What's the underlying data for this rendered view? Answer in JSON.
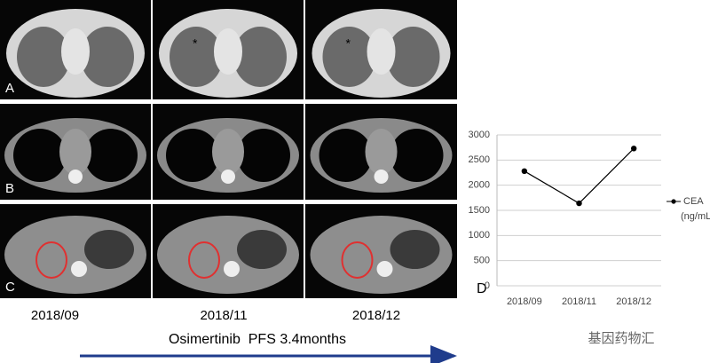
{
  "panel_labels": [
    "A",
    "B",
    "C"
  ],
  "dates": [
    "2018/09",
    "2018/11",
    "2018/12"
  ],
  "treatment": "Osimertinib  PFS 3.4months",
  "watermark": "基因药物汇",
  "chart_data": {
    "type": "line",
    "label": "D",
    "categories": [
      "2018/09",
      "2018/11",
      "2018/12"
    ],
    "series": [
      {
        "name": "CEA",
        "unit": "(ng/mL)",
        "color": "#000000",
        "values": [
          2280,
          1640,
          2730
        ]
      }
    ],
    "ylim": [
      0,
      3000
    ],
    "yticks": [
      0,
      500,
      1000,
      1500,
      2000,
      2500,
      3000
    ],
    "grid": true
  }
}
